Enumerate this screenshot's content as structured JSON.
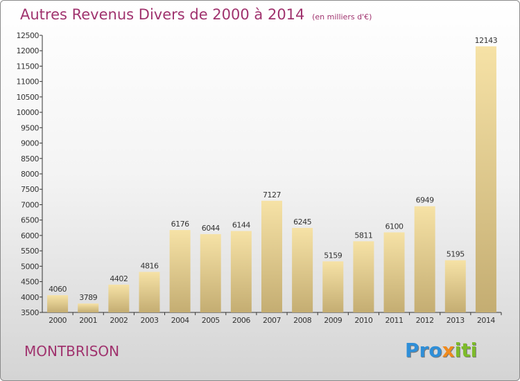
{
  "chart_data": {
    "type": "bar",
    "title": "Autres Revenus Divers de 2000 à 2014",
    "subtitle": "(en milliers d'€)",
    "categories": [
      "2000",
      "2001",
      "2002",
      "2003",
      "2004",
      "2005",
      "2006",
      "2007",
      "2008",
      "2009",
      "2010",
      "2011",
      "2012",
      "2013",
      "2014"
    ],
    "values": [
      4060,
      3789,
      4402,
      4816,
      6176,
      6044,
      6144,
      7127,
      6245,
      5159,
      5811,
      6100,
      6949,
      5195,
      12143
    ],
    "ylim": [
      3500,
      12500
    ],
    "yticks": [
      3500,
      4000,
      4500,
      5000,
      5500,
      6000,
      6500,
      7000,
      7500,
      8000,
      8500,
      9000,
      9500,
      10000,
      10500,
      11000,
      11500,
      12000,
      12500
    ],
    "grid": false,
    "colors": {
      "bar_light": "#f6e2a6",
      "bar_dark": "#c4ad72",
      "title": "#a0336e",
      "axis": "#333333"
    }
  },
  "footer": {
    "place": "MONTBRISON",
    "logo_letters": [
      {
        "ch": "P",
        "color": "#2f8fd8"
      },
      {
        "ch": "r",
        "color": "#2f8fd8"
      },
      {
        "ch": "o",
        "color": "#2f8fd8"
      },
      {
        "ch": "x",
        "color": "#f08a1c"
      },
      {
        "ch": "i",
        "color": "#7dbb2a"
      },
      {
        "ch": "t",
        "color": "#7dbb2a"
      },
      {
        "ch": "i",
        "color": "#7dbb2a"
      }
    ]
  }
}
